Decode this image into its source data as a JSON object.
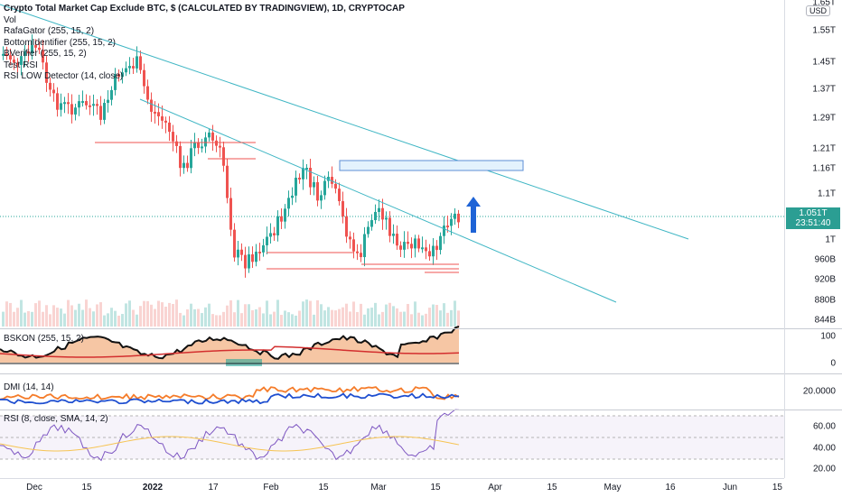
{
  "header": {
    "title": "Crypto Total Market Cap Exclude BTC, $ (CALCULATED BY TRADINGVIEW), 1D, CRYPTOCAP",
    "studies": [
      "Vol",
      "RafaGator (255, 15, 2)",
      "BottomIdentifier (255, 15, 2)",
      "BVerifier (255, 15, 2)",
      "Test RSI",
      "RSI LOW Detector (14, close)"
    ]
  },
  "price_scale": {
    "currency": "USD",
    "labels": [
      "1.65T",
      "1.55T",
      "1.45T",
      "1.37T",
      "1.29T",
      "1.21T",
      "1.16T",
      "1.1T",
      "1T",
      "960B",
      "920B",
      "880B",
      "844B"
    ],
    "last_price": "1.051T",
    "countdown": "23:51:40"
  },
  "panes": {
    "bskon": {
      "label": "BSKON (255, 15, 2)",
      "scale": [
        "100",
        "0"
      ]
    },
    "dmi": {
      "label": "DMI (14, 14)",
      "scale": [
        "20.0000"
      ]
    },
    "rsi": {
      "label": "RSI (8, close, SMA, 14, 2)",
      "scale": [
        "60.00",
        "40.00",
        "20.00"
      ]
    }
  },
  "time_axis": {
    "labels": [
      "Dec",
      "15",
      "2022",
      "17",
      "Feb",
      "15",
      "Mar",
      "15",
      "Apr",
      "15",
      "May",
      "16",
      "Jun",
      "15"
    ]
  },
  "colors": {
    "up": "#26a69a",
    "down": "#ef5350",
    "trendline": "#3fb6c4",
    "arrow": "#1e63d6",
    "orange": "#f57c2a",
    "blue": "#1f4fd0",
    "rsi": "#7e57c2"
  },
  "chart_data": {
    "type": "candlestick",
    "title": "Crypto Total Market Cap Exclude BTC, $ (CALCULATED BY TRADINGVIEW), 1D, CRYPTOCAP",
    "y_unit": "USD",
    "last_close": "1.051T",
    "y_ticks": [
      "1.65T",
      "1.55T",
      "1.45T",
      "1.37T",
      "1.29T",
      "1.21T",
      "1.16T",
      "1.1T",
      "1T",
      "960B",
      "920B",
      "880B",
      "844B"
    ],
    "x_ticks": [
      "Dec",
      "15",
      "2022",
      "17",
      "Feb",
      "15",
      "Mar",
      "15",
      "Apr",
      "15",
      "May",
      "16",
      "Jun",
      "15"
    ],
    "log_scale": true,
    "legend": "top-left"
  }
}
